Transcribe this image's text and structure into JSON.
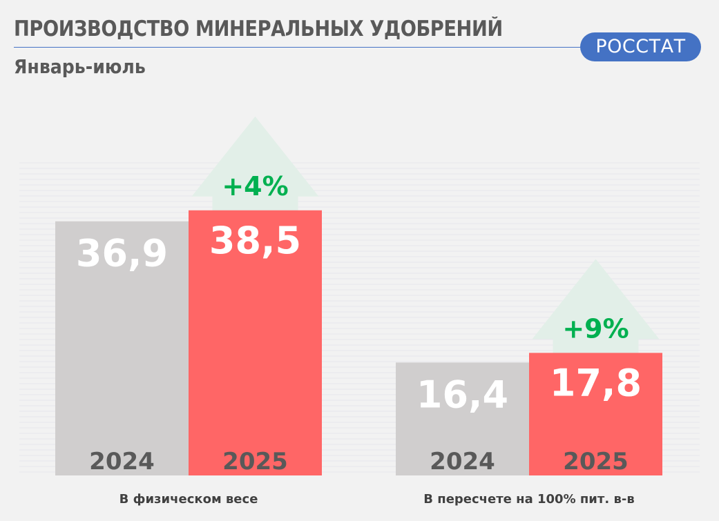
{
  "header": {
    "title": "ПРОИЗВОДСТВО МИНЕРАЛЬНЫХ УДОБРЕНИЙ",
    "subtitle": "Январь-июль",
    "source_badge": "РОССТАТ"
  },
  "colors": {
    "bar_2024": "#d0cece",
    "bar_2025": "#ff6666",
    "arrow": "#e2efe8",
    "growth_text": "#00b050",
    "year_text": "#595959",
    "value_text": "#ffffff",
    "accent": "#4472c4"
  },
  "chart_data": {
    "type": "bar",
    "title": "ПРОИЗВОДСТВО МИНЕРАЛЬНЫХ УДОБРЕНИЙ",
    "subtitle": "Январь-июль",
    "series_names": [
      "2024",
      "2025"
    ],
    "groups": [
      {
        "label": "В физическом весе",
        "values": [
          36.9,
          38.5
        ],
        "value_labels": [
          "36,9",
          "38,5"
        ],
        "growth": "+4%"
      },
      {
        "label": "В пересчете на 100% пит. в-в",
        "values": [
          16.4,
          17.8
        ],
        "value_labels": [
          "16,4",
          "17,8"
        ],
        "growth": "+9%"
      }
    ],
    "grid": true,
    "legend": "none"
  }
}
